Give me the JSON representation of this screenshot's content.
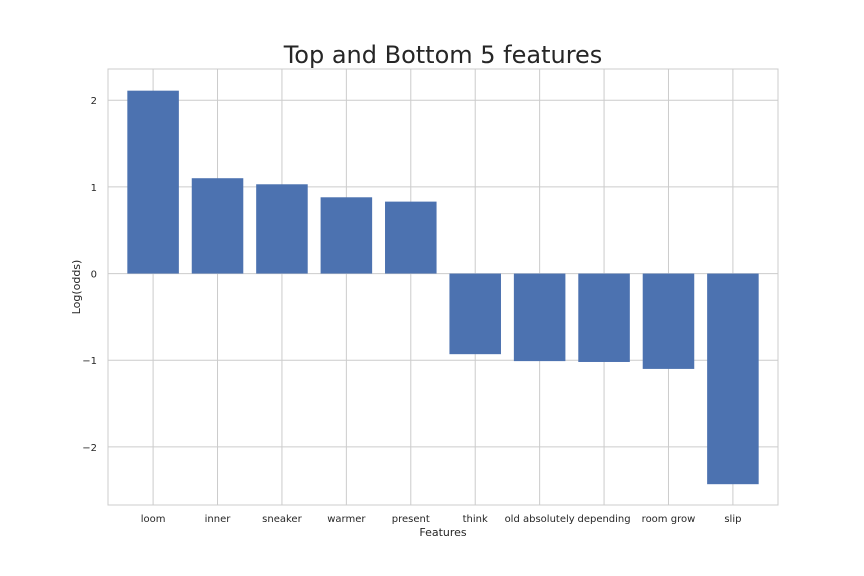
{
  "chart_data": {
    "type": "bar",
    "title": "Top and Bottom 5 features",
    "xlabel": "Features",
    "ylabel": "Log(odds)",
    "categories": [
      "loom",
      "inner",
      "sneaker",
      "warmer",
      "present",
      "think",
      "old absolutely",
      "depending",
      "room grow",
      "slip"
    ],
    "values": [
      2.11,
      1.1,
      1.03,
      0.88,
      0.83,
      -0.93,
      -1.01,
      -1.02,
      -1.1,
      -2.43
    ],
    "ylim": [
      -2.67,
      2.36
    ],
    "yticks": [
      2,
      1,
      0,
      -1,
      -2
    ],
    "ytick_labels": [
      "2",
      "1",
      "0",
      "−1",
      "−2"
    ],
    "grid": true,
    "bar_color": "#4c72b0"
  }
}
